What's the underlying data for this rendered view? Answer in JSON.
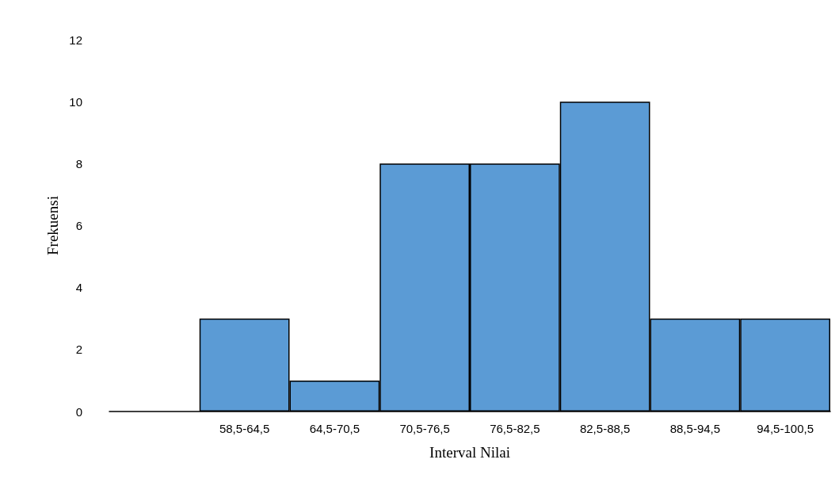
{
  "chart_data": {
    "type": "bar",
    "xlabel": "Interval Nilai",
    "ylabel": "Frekuensi",
    "categories": [
      null,
      "58,5-64,5",
      "64,5-70,5",
      "70,5-76,5",
      "76,5-82,5",
      "82,5-88,5",
      "88,5-94,5",
      "94,5-100,5"
    ],
    "values": [
      null,
      3,
      1,
      8,
      8,
      10,
      3,
      3
    ],
    "color": "#5b9bd5",
    "ylim": [
      0,
      12
    ],
    "yticks": [
      0,
      2,
      4,
      6,
      8,
      10,
      12
    ],
    "grid": false
  }
}
